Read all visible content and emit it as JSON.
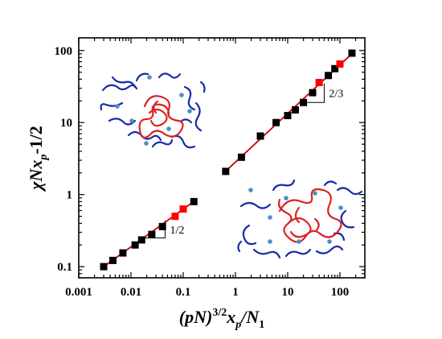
{
  "chart_data": {
    "type": "scatter",
    "xscale": "log",
    "yscale": "log",
    "xlim": [
      0.001,
      300
    ],
    "ylim": [
      0.07,
      150
    ],
    "xticks": [
      0.001,
      0.01,
      0.1,
      1,
      10,
      100
    ],
    "xtick_labels": [
      "0.001",
      "0.01",
      "0.1",
      "1",
      "10",
      "100"
    ],
    "yticks": [
      0.1,
      1,
      10,
      100
    ],
    "ytick_labels": [
      "0.1",
      "1",
      "10",
      "100"
    ],
    "xlabel": {
      "base": "(pN)",
      "sup": "3/2",
      "mid": "x",
      "sub1": "p",
      "tail": "/N",
      "sub2": "1"
    },
    "ylabel": {
      "base": "χNx",
      "sub": "p",
      "tail": "-1/2"
    },
    "grid": false,
    "legend": "none",
    "colors": {
      "black_marker": "#000000",
      "red_marker": "#ff0000",
      "fit_line": "#cc0000"
    },
    "series": [
      {
        "x": [
          0.003,
          0.0045,
          0.007,
          0.012,
          0.016,
          0.025,
          0.04,
          0.07,
          0.1,
          0.16
        ],
        "y": [
          0.1,
          0.122,
          0.155,
          0.2,
          0.235,
          0.28,
          0.36,
          0.5,
          0.63,
          0.8
        ],
        "marker_colors": [
          "black",
          "black",
          "black",
          "black",
          "black",
          "black",
          "black",
          "red",
          "red",
          "black"
        ]
      },
      {
        "x": [
          0.65,
          1.3,
          3,
          6,
          10,
          14,
          20,
          30,
          40,
          60,
          80,
          100,
          170
        ],
        "y": [
          2.1,
          3.3,
          6.5,
          10,
          12.5,
          15,
          19,
          26,
          36,
          45,
          56,
          65,
          92
        ],
        "marker_colors": [
          "black",
          "black",
          "black",
          "black",
          "black",
          "black",
          "black",
          "black",
          "red",
          "black",
          "black",
          "red",
          "black"
        ]
      }
    ],
    "fit_lines": [
      {
        "x": [
          0.003,
          0.17
        ],
        "y": [
          0.1,
          0.83
        ]
      },
      {
        "x": [
          0.62,
          180
        ],
        "y": [
          2.05,
          94
        ]
      }
    ],
    "annotations": [
      {
        "text": "1/2",
        "slope": 0.5,
        "x0": 0.015,
        "y0": 0.25,
        "x1": 0.045
      },
      {
        "text": "2/3",
        "slope": 0.6667,
        "x0": 20,
        "y0": 19,
        "x1": 50
      }
    ]
  }
}
